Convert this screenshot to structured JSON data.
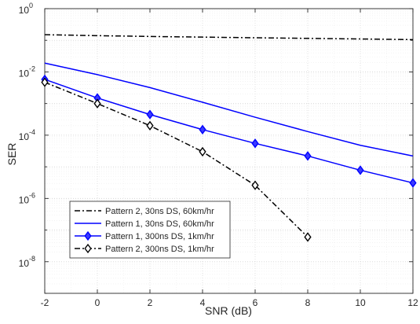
{
  "chart_data": {
    "type": "line",
    "title": "",
    "xlabel": "SNR (dB)",
    "ylabel": "SER",
    "xlim": [
      -2,
      12
    ],
    "ylim_log10": [
      -9,
      0
    ],
    "yscale": "log",
    "grid": true,
    "minor_grid": true,
    "legend_position": "lower-left",
    "x_ticks": [
      -2,
      0,
      2,
      4,
      6,
      8,
      10,
      12
    ],
    "x_tick_labels": [
      "-2",
      "0",
      "2",
      "4",
      "6",
      "8",
      "10",
      "12"
    ],
    "y_tick_exponents": [
      0,
      -2,
      -4,
      -6,
      -8
    ],
    "y_tick_base": "10",
    "y_tick_exponent_labels": [
      "0",
      "-2",
      "-4",
      "-6",
      "-8"
    ],
    "series": [
      {
        "name": "Pattern 2, 30ns DS, 60km/hr",
        "color": "#000000",
        "line_style": "dash-dot",
        "marker": "none",
        "x": [
          -2,
          0,
          2,
          4,
          6,
          8,
          10,
          12
        ],
        "y": [
          0.15,
          0.14,
          0.132,
          0.126,
          0.12,
          0.115,
          0.11,
          0.105
        ]
      },
      {
        "name": "Pattern 1, 30ns DS, 60km/hr",
        "color": "#0000ff",
        "line_style": "solid",
        "marker": "none",
        "x": [
          -2,
          0,
          2,
          4,
          6,
          8,
          10,
          12
        ],
        "y": [
          0.019,
          0.0082,
          0.0032,
          0.0011,
          0.00037,
          0.00013,
          4.8e-05,
          2.2e-05
        ]
      },
      {
        "name": "Pattern 1, 300ns DS, 1km/hr",
        "color": "#0000ff",
        "line_style": "solid",
        "marker": "diamond-filled",
        "x": [
          -2,
          0,
          2,
          4,
          6,
          8,
          10,
          12
        ],
        "y": [
          0.0058,
          0.0015,
          0.00045,
          0.00015,
          5.5e-05,
          2.2e-05,
          7.8e-06,
          3.1e-06
        ]
      },
      {
        "name": "Pattern 2, 300ns DS, 1km/hr",
        "color": "#000000",
        "line_style": "dash-dot",
        "marker": "diamond-open",
        "x": [
          -2,
          0,
          2,
          4,
          6,
          8
        ],
        "y": [
          0.0047,
          0.001,
          0.0002,
          3e-05,
          2.6e-06,
          6e-08
        ]
      }
    ]
  }
}
